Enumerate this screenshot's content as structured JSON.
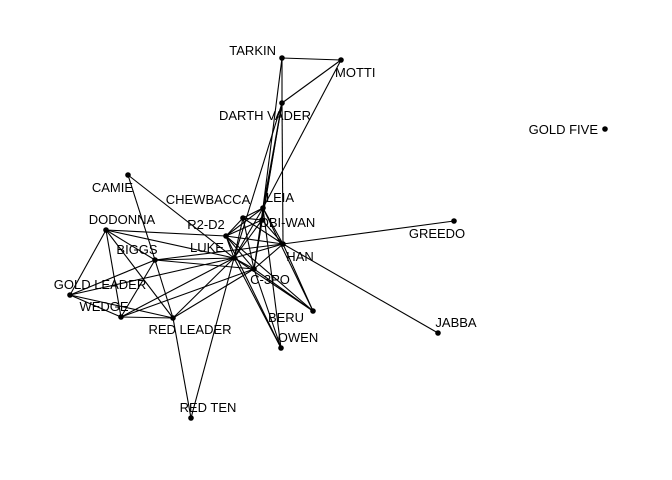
{
  "graph": {
    "colors": {
      "edge": "#000000",
      "node": "#000000",
      "label": "#000000",
      "background": "#ffffff"
    },
    "nodes": [
      {
        "id": "tarkin",
        "label": "TARKIN"
      },
      {
        "id": "motti",
        "label": "MOTTI"
      },
      {
        "id": "vader",
        "label": "DARTH VADER"
      },
      {
        "id": "goldfive",
        "label": "GOLD FIVE"
      },
      {
        "id": "camie",
        "label": "CAMIE"
      },
      {
        "id": "chewbacca",
        "label": "CHEWBACCA"
      },
      {
        "id": "leia",
        "label": "LEIA"
      },
      {
        "id": "dodonna",
        "label": "DODONNA"
      },
      {
        "id": "r2d2",
        "label": "R2-D2"
      },
      {
        "id": "obiwan",
        "label": "OBI-WAN"
      },
      {
        "id": "greedo",
        "label": "GREEDO"
      },
      {
        "id": "biggs",
        "label": "BIGGS"
      },
      {
        "id": "luke",
        "label": "LUKE"
      },
      {
        "id": "han",
        "label": "HAN"
      },
      {
        "id": "c3po",
        "label": "C-3PO"
      },
      {
        "id": "goldleader",
        "label": "GOLD LEADER"
      },
      {
        "id": "wedge",
        "label": "WEDGE"
      },
      {
        "id": "redleader",
        "label": "RED LEADER"
      },
      {
        "id": "beru",
        "label": "BERU"
      },
      {
        "id": "owen",
        "label": "OWEN"
      },
      {
        "id": "jabba",
        "label": "JABBA"
      },
      {
        "id": "redten",
        "label": "RED TEN"
      }
    ],
    "edges": [
      [
        "tarkin",
        "motti"
      ],
      [
        "tarkin",
        "vader"
      ],
      [
        "motti",
        "vader"
      ],
      [
        "tarkin",
        "leia"
      ],
      [
        "motti",
        "leia"
      ],
      [
        "vader",
        "leia"
      ],
      [
        "vader",
        "obiwan"
      ],
      [
        "vader",
        "luke"
      ],
      [
        "vader",
        "han"
      ],
      [
        "vader",
        "c3po"
      ],
      [
        "camie",
        "luke"
      ],
      [
        "camie",
        "biggs"
      ],
      [
        "chewbacca",
        "luke"
      ],
      [
        "chewbacca",
        "han"
      ],
      [
        "chewbacca",
        "c3po"
      ],
      [
        "chewbacca",
        "leia"
      ],
      [
        "chewbacca",
        "r2d2"
      ],
      [
        "chewbacca",
        "obiwan"
      ],
      [
        "leia",
        "r2d2"
      ],
      [
        "leia",
        "luke"
      ],
      [
        "leia",
        "han"
      ],
      [
        "leia",
        "c3po"
      ],
      [
        "leia",
        "obiwan"
      ],
      [
        "leia",
        "beru"
      ],
      [
        "leia",
        "owen"
      ],
      [
        "r2d2",
        "obiwan"
      ],
      [
        "r2d2",
        "luke"
      ],
      [
        "r2d2",
        "han"
      ],
      [
        "r2d2",
        "c3po"
      ],
      [
        "r2d2",
        "beru"
      ],
      [
        "r2d2",
        "owen"
      ],
      [
        "r2d2",
        "dodonna"
      ],
      [
        "obiwan",
        "luke"
      ],
      [
        "obiwan",
        "han"
      ],
      [
        "obiwan",
        "c3po"
      ],
      [
        "han",
        "greedo"
      ],
      [
        "han",
        "jabba"
      ],
      [
        "han",
        "luke"
      ],
      [
        "han",
        "c3po"
      ],
      [
        "han",
        "biggs"
      ],
      [
        "han",
        "beru"
      ],
      [
        "luke",
        "c3po"
      ],
      [
        "luke",
        "biggs"
      ],
      [
        "luke",
        "dodonna"
      ],
      [
        "luke",
        "goldleader"
      ],
      [
        "luke",
        "wedge"
      ],
      [
        "luke",
        "redleader"
      ],
      [
        "luke",
        "redten"
      ],
      [
        "luke",
        "beru"
      ],
      [
        "luke",
        "owen"
      ],
      [
        "c3po",
        "beru"
      ],
      [
        "c3po",
        "owen"
      ],
      [
        "c3po",
        "wedge"
      ],
      [
        "c3po",
        "redleader"
      ],
      [
        "c3po",
        "biggs"
      ],
      [
        "dodonna",
        "biggs"
      ],
      [
        "dodonna",
        "goldleader"
      ],
      [
        "dodonna",
        "wedge"
      ],
      [
        "dodonna",
        "redleader"
      ],
      [
        "biggs",
        "goldleader"
      ],
      [
        "biggs",
        "wedge"
      ],
      [
        "biggs",
        "redleader"
      ],
      [
        "goldleader",
        "wedge"
      ],
      [
        "goldleader",
        "redleader"
      ],
      [
        "wedge",
        "redleader"
      ],
      [
        "redleader",
        "redten"
      ]
    ]
  }
}
